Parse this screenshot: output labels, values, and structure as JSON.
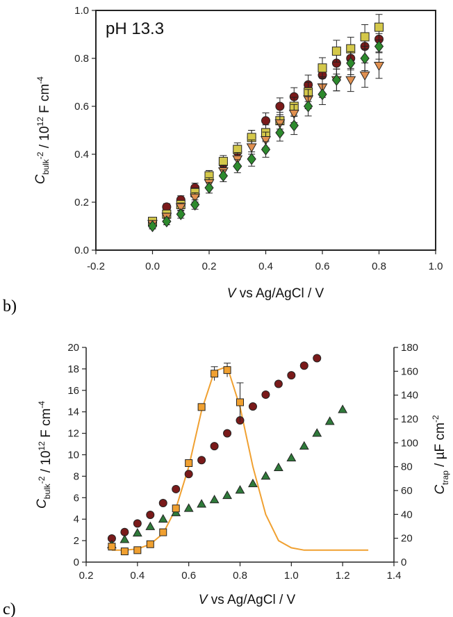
{
  "chart_data": [
    {
      "panel_label": "b)",
      "type": "scatter",
      "annotation": "pH 13.3",
      "xlabel": {
        "italic": "V",
        "rest": " vs Ag/AgCl / V"
      },
      "ylabel": {
        "italic": "C",
        "sub": "bulk",
        "sup": "-2",
        "rest": " / 10",
        "sup2": "12",
        "rest2": " F cm",
        "sup3": "-4"
      },
      "xlim": [
        -0.2,
        1.0
      ],
      "ylim": [
        0.0,
        1.0
      ],
      "xticks": [
        "-0.2",
        "0.0",
        "0.2",
        "0.4",
        "0.6",
        "0.8",
        "1.0"
      ],
      "yticks": [
        "0.0",
        "0.2",
        "0.4",
        "0.6",
        "0.8",
        "1.0"
      ],
      "x": [
        0.0,
        0.05,
        0.1,
        0.15,
        0.2,
        0.25,
        0.3,
        0.35,
        0.4,
        0.45,
        0.5,
        0.55,
        0.6,
        0.65,
        0.7,
        0.75,
        0.8
      ],
      "series": [
        {
          "marker": "circle",
          "color": "#7a1a1a",
          "values": [
            0.11,
            0.18,
            0.21,
            0.26,
            0.31,
            0.36,
            0.41,
            0.47,
            0.54,
            0.6,
            0.64,
            0.69,
            0.73,
            0.78,
            0.8,
            0.85,
            0.88
          ]
        },
        {
          "marker": "square",
          "color": "#d4c84a",
          "values": [
            0.12,
            0.15,
            0.19,
            0.24,
            0.31,
            0.37,
            0.42,
            0.47,
            0.49,
            0.54,
            0.6,
            0.66,
            0.76,
            0.83,
            0.84,
            0.89,
            0.93
          ]
        },
        {
          "marker": "triangle-down",
          "color": "#e09050",
          "values": [
            0.11,
            0.14,
            0.18,
            0.22,
            0.28,
            0.33,
            0.38,
            0.43,
            0.46,
            0.53,
            0.57,
            0.63,
            0.68,
            0.71,
            0.71,
            0.73,
            0.77
          ]
        },
        {
          "marker": "diamond",
          "color": "#2d8a2d",
          "values": [
            0.1,
            0.12,
            0.15,
            0.19,
            0.26,
            0.31,
            0.35,
            0.38,
            0.42,
            0.49,
            0.52,
            0.6,
            0.65,
            0.71,
            0.78,
            0.8,
            0.85
          ]
        }
      ],
      "grid": false
    },
    {
      "panel_label": "c)",
      "type": "scatter",
      "xlabel": {
        "italic": "V",
        "rest": " vs Ag/AgCl / V"
      },
      "ylabel": {
        "italic": "C",
        "sub": "bulk",
        "sup": "-2",
        "rest": " / 10",
        "sup2": "12",
        "rest2": " F cm",
        "sup3": "-4"
      },
      "y2label": {
        "italic": "C",
        "sub": "trap",
        "rest": " / µF cm",
        "sup": "-2"
      },
      "xlim": [
        0.2,
        1.4
      ],
      "ylim": [
        0,
        20
      ],
      "y2lim": [
        0,
        180
      ],
      "xticks": [
        "0.2",
        "0.4",
        "0.6",
        "0.8",
        "1.0",
        "1.2",
        "1.4"
      ],
      "yticks": [
        "0",
        "2",
        "4",
        "6",
        "8",
        "10",
        "12",
        "14",
        "16",
        "18",
        "20"
      ],
      "y2ticks": [
        "0",
        "20",
        "40",
        "60",
        "80",
        "100",
        "120",
        "140",
        "160",
        "180"
      ],
      "series": [
        {
          "marker": "circle",
          "color": "#7a1a1a",
          "axis": "left",
          "x": [
            0.3,
            0.35,
            0.4,
            0.45,
            0.5,
            0.55,
            0.6,
            0.65,
            0.7,
            0.75,
            0.8,
            0.85,
            0.9,
            0.95,
            1.0,
            1.05,
            1.1
          ],
          "values": [
            2.2,
            2.8,
            3.6,
            4.4,
            5.5,
            6.8,
            8.2,
            9.5,
            10.8,
            12.0,
            13.2,
            14.5,
            15.6,
            16.6,
            17.4,
            18.3,
            19.0
          ]
        },
        {
          "marker": "triangle",
          "color": "#2f7a3a",
          "axis": "left",
          "x": [
            0.3,
            0.35,
            0.4,
            0.45,
            0.5,
            0.55,
            0.6,
            0.65,
            0.7,
            0.75,
            0.8,
            0.85,
            0.9,
            0.95,
            1.0,
            1.05,
            1.1,
            1.15,
            1.2
          ],
          "values": [
            1.6,
            2.1,
            2.7,
            3.3,
            4.0,
            4.6,
            5.0,
            5.4,
            5.8,
            6.2,
            6.7,
            7.3,
            8.0,
            8.8,
            9.7,
            10.8,
            12.0,
            13.1,
            14.2
          ]
        },
        {
          "marker": "square",
          "color": "#f0a030",
          "axis": "right",
          "x": [
            0.3,
            0.35,
            0.4,
            0.45,
            0.5,
            0.55,
            0.6,
            0.65,
            0.7,
            0.75,
            0.8
          ],
          "values": [
            13,
            9,
            10,
            15,
            25,
            45,
            83,
            130,
            158,
            161,
            134
          ]
        }
      ],
      "fit_curve": {
        "color": "#f0a030",
        "axis": "right",
        "x": [
          0.3,
          0.35,
          0.4,
          0.45,
          0.5,
          0.55,
          0.6,
          0.65,
          0.7,
          0.75,
          0.8,
          0.85,
          0.9,
          0.95,
          1.0,
          1.05,
          1.1,
          1.2,
          1.3
        ],
        "values": [
          10,
          10,
          11,
          15,
          24,
          45,
          80,
          127,
          160,
          164,
          130,
          80,
          40,
          18,
          12,
          10,
          10,
          10,
          10
        ]
      },
      "grid": false
    }
  ]
}
